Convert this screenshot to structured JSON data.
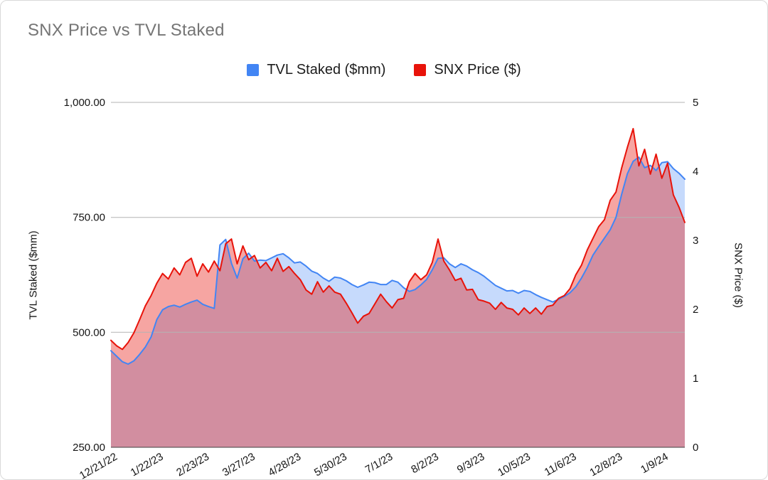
{
  "title": "SNX Price vs TVL Staked",
  "legend": [
    {
      "label": "TVL Staked ($mm)",
      "color": "#4285f4"
    },
    {
      "label": "SNX Price ($)",
      "color": "#e8130a"
    }
  ],
  "chart_data": {
    "type": "area",
    "title": "SNX Price vs TVL Staked",
    "legend_position": "top",
    "grid": true,
    "x_tick_labels": [
      "12/21/22",
      "1/22/23",
      "2/23/23",
      "3/27/23",
      "4/28/23",
      "5/30/23",
      "7/1/23",
      "8/2/23",
      "9/3/23",
      "10/5/23",
      "11/6/23",
      "12/8/23",
      "1/9/24"
    ],
    "x_tick_step_days": 32,
    "x_total_days": 400,
    "left_axis": {
      "title": "TVL Staked ($mm)",
      "min": 250,
      "max": 1000,
      "tick_values": [
        1000,
        750,
        500,
        250
      ],
      "tick_labels": [
        "1,000.00",
        "750.00",
        "500.00",
        "250.00"
      ]
    },
    "right_axis": {
      "title": "SNX Price ($)",
      "min": 0,
      "max": 5,
      "tick_values": [
        5,
        4,
        3,
        2,
        1,
        0
      ],
      "tick_labels": [
        "5",
        "4",
        "3",
        "2",
        "1",
        "0"
      ]
    },
    "series": [
      {
        "name": "TVL Staked ($mm)",
        "axis": "left",
        "color": "#4285f4",
        "fill_opacity": 0.3,
        "values": [
          460,
          448,
          436,
          431,
          438,
          452,
          468,
          490,
          528,
          549,
          556,
          559,
          555,
          561,
          566,
          570,
          561,
          556,
          552,
          690,
          702,
          650,
          618,
          660,
          672,
          655,
          657,
          656,
          662,
          668,
          671,
          662,
          651,
          653,
          644,
          633,
          628,
          618,
          611,
          620,
          618,
          612,
          604,
          598,
          603,
          609,
          608,
          604,
          604,
          613,
          609,
          597,
          589,
          593,
          603,
          615,
          636,
          661,
          662,
          649,
          641,
          649,
          644,
          636,
          630,
          622,
          612,
          602,
          596,
          590,
          591,
          585,
          591,
          589,
          582,
          576,
          571,
          566,
          572,
          578,
          586,
          599,
          618,
          641,
          668,
          687,
          705,
          723,
          750,
          800,
          845,
          872,
          881,
          858,
          863,
          852,
          869,
          871,
          856,
          846,
          833
        ]
      },
      {
        "name": "SNX Price ($)",
        "axis": "right",
        "color": "#e8130a",
        "fill_opacity": 0.38,
        "values": [
          1.55,
          1.47,
          1.42,
          1.52,
          1.66,
          1.85,
          2.05,
          2.2,
          2.38,
          2.52,
          2.44,
          2.6,
          2.5,
          2.68,
          2.74,
          2.48,
          2.66,
          2.54,
          2.7,
          2.56,
          2.95,
          3.02,
          2.66,
          2.92,
          2.72,
          2.78,
          2.6,
          2.68,
          2.56,
          2.74,
          2.55,
          2.62,
          2.52,
          2.43,
          2.28,
          2.22,
          2.4,
          2.25,
          2.34,
          2.25,
          2.22,
          2.09,
          1.95,
          1.8,
          1.9,
          1.94,
          2.08,
          2.22,
          2.11,
          2.02,
          2.14,
          2.16,
          2.4,
          2.52,
          2.43,
          2.5,
          2.68,
          3.02,
          2.7,
          2.57,
          2.42,
          2.45,
          2.28,
          2.29,
          2.14,
          2.12,
          2.09,
          2.0,
          2.1,
          2.02,
          2.0,
          1.92,
          2.02,
          1.94,
          2.02,
          1.93,
          2.04,
          2.06,
          2.16,
          2.2,
          2.3,
          2.5,
          2.64,
          2.86,
          3.03,
          3.2,
          3.3,
          3.58,
          3.7,
          4.05,
          4.35,
          4.62,
          4.08,
          4.32,
          3.96,
          4.25,
          3.9,
          4.12,
          3.66,
          3.48,
          3.26
        ]
      }
    ]
  }
}
